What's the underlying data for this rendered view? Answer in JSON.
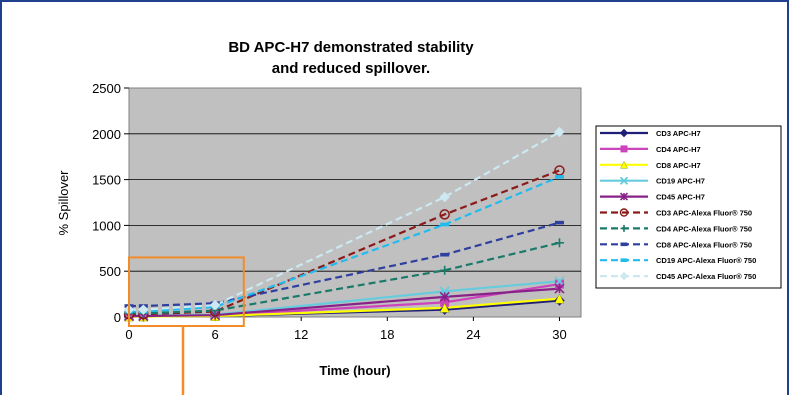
{
  "colors": {
    "frame": "#1f3f8f",
    "plot_bg": "#c0c0c0",
    "highlight": "#f28c28"
  },
  "chart_data": {
    "type": "line",
    "title_lines": [
      "BD APC-H7 demonstrated stability",
      "and reduced spillover."
    ],
    "xlabel": "Time (hour)",
    "ylabel": "% Spillover",
    "xlim": [
      0,
      31.5
    ],
    "ylim": [
      0,
      2500
    ],
    "xticks": [
      0,
      6,
      12,
      18,
      24,
      30
    ],
    "yticks": [
      0,
      500,
      1000,
      1500,
      2000,
      2500
    ],
    "grid": true,
    "legend_position": "right",
    "x": [
      0,
      1,
      6,
      22,
      30
    ],
    "series": [
      {
        "name": "CD3 APC-H7",
        "values": [
          5,
          5,
          10,
          80,
          180
        ],
        "color": "#1f1f7a",
        "dash": "solid",
        "marker": "diamond"
      },
      {
        "name": "CD4 APC-H7",
        "values": [
          10,
          10,
          15,
          160,
          360
        ],
        "color": "#cc44bb",
        "dash": "solid",
        "marker": "square"
      },
      {
        "name": "CD8 APC-H7",
        "values": [
          5,
          5,
          10,
          100,
          200
        ],
        "color": "#ffff00",
        "dash": "solid",
        "marker": "triangle"
      },
      {
        "name": "CD19 APC-H7",
        "values": [
          15,
          15,
          25,
          280,
          390
        ],
        "color": "#66ccdd",
        "dash": "solid",
        "marker": "x"
      },
      {
        "name": "CD45 APC-H7",
        "values": [
          10,
          10,
          20,
          220,
          310
        ],
        "color": "#882288",
        "dash": "solid",
        "marker": "star"
      },
      {
        "name": "CD3 APC-Alexa Fluor® 750",
        "values": [
          30,
          30,
          60,
          1120,
          1600
        ],
        "color": "#8b1a1a",
        "dash": "dashed",
        "marker": "circle"
      },
      {
        "name": "CD4 APC-Alexa Fluor® 750",
        "values": [
          40,
          40,
          70,
          510,
          810
        ],
        "color": "#1a7a6a",
        "dash": "dashed",
        "marker": "plus"
      },
      {
        "name": "CD8 APC-Alexa Fluor® 750",
        "values": [
          120,
          120,
          150,
          680,
          1030
        ],
        "color": "#2f3f9f",
        "dash": "dashed",
        "marker": "dash"
      },
      {
        "name": "CD19 APC-Alexa Fluor® 750",
        "values": [
          60,
          60,
          110,
          1010,
          1530
        ],
        "color": "#22bbee",
        "dash": "dashed",
        "marker": "dash"
      },
      {
        "name": "CD45 APC-Alexa Fluor® 750",
        "values": [
          80,
          80,
          130,
          1310,
          2020
        ],
        "color": "#cce8f0",
        "dash": "dashed",
        "marker": "diamond"
      }
    ],
    "highlight_box": {
      "x_range": [
        0,
        8
      ],
      "y_range": [
        0,
        650
      ]
    }
  }
}
